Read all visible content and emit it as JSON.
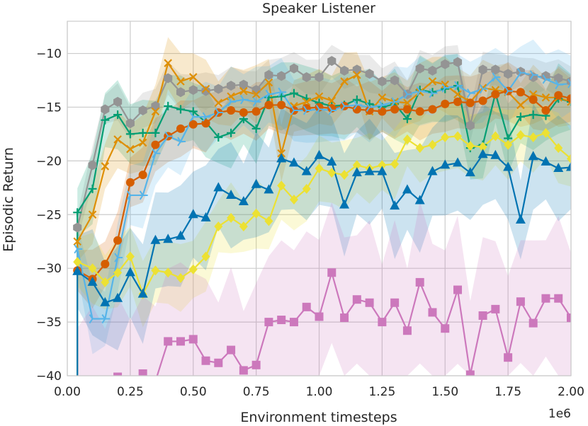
{
  "chart_data": {
    "type": "line",
    "title": "Speaker Listener",
    "xlabel": "Environment timesteps",
    "ylabel": "Episodic Return",
    "x_scale_label": "1e6",
    "xlim": [
      0,
      2000000
    ],
    "ylim": [
      -40,
      -7
    ],
    "grid": true,
    "x_ticks": [
      0,
      250000,
      500000,
      750000,
      1000000,
      1250000,
      1500000,
      1750000,
      2000000
    ],
    "x_tick_labels": [
      "0.00",
      "0.25",
      "0.50",
      "0.75",
      "1.00",
      "1.25",
      "1.50",
      "1.75",
      "2.00"
    ],
    "y_ticks": [
      -40,
      -35,
      -30,
      -25,
      -20,
      -15,
      -10
    ],
    "y_tick_labels": [
      "−40",
      "−35",
      "−30",
      "−25",
      "−20",
      "−15",
      "−10"
    ],
    "x": [
      40000,
      100000,
      150000,
      200000,
      250000,
      300000,
      350000,
      400000,
      450000,
      500000,
      550000,
      600000,
      650000,
      700000,
      750000,
      800000,
      850000,
      900000,
      950000,
      1000000,
      1050000,
      1100000,
      1150000,
      1200000,
      1250000,
      1300000,
      1350000,
      1400000,
      1450000,
      1500000,
      1550000,
      1600000,
      1650000,
      1700000,
      1750000,
      1800000,
      1850000,
      1900000,
      1950000,
      2000000
    ],
    "series": [
      {
        "color": "#949494",
        "marker": "hexagon",
        "band": 1.6,
        "values": [
          -26.2,
          -20.4,
          -15.2,
          -14.5,
          -16.5,
          -15.3,
          -14.9,
          -12.3,
          -13.6,
          -13.4,
          -13.5,
          -13.3,
          -13.0,
          -12.9,
          -13.4,
          -12.0,
          -12.1,
          -11.4,
          -12.2,
          -12.2,
          -10.7,
          -11.6,
          -11.5,
          -11.9,
          -12.6,
          -12.5,
          -13.8,
          -11.4,
          -11.6,
          -11.0,
          -10.8,
          -16.7,
          -11.5,
          -11.5,
          -11.9,
          -11.7,
          -12.2,
          -12.1,
          -12.3,
          -12.6
        ]
      },
      {
        "color": "#029e73",
        "marker": "plus",
        "band": 3.0,
        "values": [
          -24.8,
          -22.6,
          -16.2,
          -15.7,
          -17.5,
          -17.4,
          -17.4,
          -14.9,
          -15.2,
          -15.4,
          -16.4,
          -17.8,
          -17.4,
          -16.1,
          -17.0,
          -14.1,
          -14.0,
          -13.7,
          -14.2,
          -14.6,
          -14.9,
          -14.8,
          -14.3,
          -14.7,
          -15.0,
          -14.7,
          -16.1,
          -13.4,
          -13.6,
          -13.3,
          -13.0,
          -18.8,
          -18.5,
          -13.7,
          -17.9,
          -15.9,
          -15.7,
          -15.8,
          -14.2,
          -14.5
        ]
      },
      {
        "color": "#de8f05",
        "marker": "x",
        "band": 2.5,
        "values": [
          -27.5,
          -25.0,
          -20.5,
          -18.0,
          -18.9,
          -18.3,
          -15.4,
          -10.9,
          -12.6,
          -12.2,
          -13.3,
          -14.6,
          -14.0,
          -13.5,
          -13.8,
          -12.7,
          -19.3,
          -14.9,
          -14.5,
          -14.0,
          -14.4,
          -12.6,
          -12.0,
          -15.4,
          -14.1,
          -14.5,
          -14.6,
          -13.6,
          -12.6,
          -12.9,
          -13.8,
          -14.5,
          -13.2,
          -13.4,
          -13.6,
          -14.8,
          -13.8,
          -14.1,
          -14.1,
          -14.5
        ]
      },
      {
        "color": "#d55e00",
        "marker": "circle",
        "band": 2.5,
        "values": [
          -30.2,
          -31.0,
          -29.6,
          -27.4,
          -22.0,
          -21.3,
          -18.5,
          -17.7,
          -17.0,
          -16.6,
          -16.5,
          -15.5,
          -15.3,
          -15.5,
          -15.4,
          -14.8,
          -14.8,
          -15.3,
          -15.1,
          -15.0,
          -15.1,
          -14.9,
          -15.2,
          -15.3,
          -15.4,
          -15.2,
          -15.2,
          -15.4,
          -15.2,
          -14.7,
          -14.5,
          -14.6,
          -14.4,
          -13.8,
          -13.5,
          -13.6,
          -14.3,
          -15.3,
          -13.9,
          -14.2
        ]
      },
      {
        "color": "#56b4e9",
        "marker": "tri_right",
        "band": 3.0,
        "values": [
          -28.2,
          -34.7,
          -34.7,
          -29.0,
          -23.2,
          -23.2,
          -19.3,
          -17.7,
          -18.2,
          -15.9,
          -15.9,
          -15.5,
          -14.5,
          -14.3,
          -14.5,
          -13.8,
          -13.6,
          -15.3,
          -15.3,
          -15.2,
          -15.3,
          -14.9,
          -14.8,
          -15.0,
          -14.8,
          -14.5,
          -13.8,
          -13.5,
          -13.7,
          -13.2,
          -13.0,
          -13.7,
          -13.3,
          -12.2,
          -13.5,
          -11.8,
          -12.0,
          -12.4,
          -12.9,
          -12.8
        ]
      },
      {
        "color": "#ece133",
        "marker": "diamond",
        "band": 3.0,
        "values": [
          -29.4,
          -30.0,
          -31.3,
          -30.4,
          -28.9,
          -32.4,
          -30.2,
          -30.4,
          -30.9,
          -30.1,
          -28.9,
          -26.1,
          -25.3,
          -26.1,
          -24.9,
          -25.6,
          -22.3,
          -23.6,
          -22.6,
          -20.7,
          -21.1,
          -21.3,
          -20.4,
          -20.7,
          -20.4,
          -20.3,
          -18.0,
          -18.8,
          -18.5,
          -17.8,
          -17.7,
          -18.6,
          -18.7,
          -17.7,
          -18.5,
          -17.6,
          -17.8,
          -17.4,
          -18.8,
          -19.8
        ]
      },
      {
        "color": "#0173b2",
        "marker": "triangle",
        "band": 4.5,
        "values": [
          -30.3,
          -31.3,
          -33.2,
          -32.8,
          -30.4,
          -32.4,
          -27.4,
          -27.3,
          -27.0,
          -25.0,
          -25.3,
          -22.5,
          -23.2,
          -23.8,
          -22.2,
          -22.7,
          -19.8,
          -20.2,
          -21.0,
          -19.5,
          -20.1,
          -24.1,
          -21.1,
          -21.0,
          -21.0,
          -24.2,
          -22.7,
          -23.7,
          -21.0,
          -20.4,
          -20.2,
          -21.1,
          -19.4,
          -19.5,
          -20.6,
          -25.5,
          -19.6,
          -20.1,
          -20.7,
          -20.6
        ]
      },
      {
        "color": "#cc78bc",
        "marker": "square",
        "band": 7.0,
        "values": [
          -40.8,
          -41.2,
          -41.5,
          -40.1,
          -41.3,
          -39.8,
          -40.5,
          -36.8,
          -36.8,
          -36.6,
          -38.6,
          -38.8,
          -37.6,
          -39.5,
          -39.0,
          -35.0,
          -34.8,
          -35.0,
          -33.6,
          -34.5,
          -30.4,
          -34.6,
          -32.9,
          -33.2,
          -35.0,
          -33.2,
          -35.8,
          -31.3,
          -34.1,
          -35.6,
          -32.0,
          -39.9,
          -34.4,
          -33.8,
          -38.3,
          -33.1,
          -35.1,
          -32.8,
          -32.8,
          -34.6
        ]
      }
    ]
  }
}
